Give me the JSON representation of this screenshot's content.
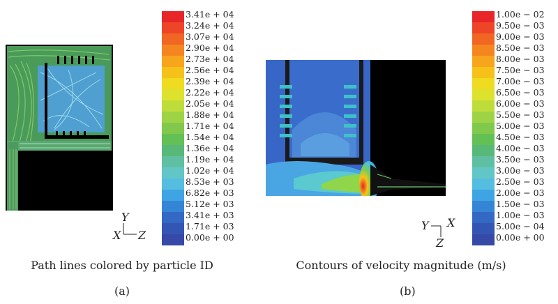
{
  "panel_a": {
    "caption": "Path lines colored by particle ID",
    "sublabel": "(a)",
    "axes": {
      "up": "Y",
      "left": "X",
      "right": "Z"
    },
    "colorbar_labels": [
      "3.41e + 04",
      "3.24e + 04",
      "3.07e + 04",
      "2.90e + 04",
      "2.73e + 04",
      "2.56e + 04",
      "2.39e + 04",
      "2.22e + 04",
      "2.05e + 04",
      "1.88e + 04",
      "1.71e + 04",
      "1.54e + 04",
      "1.36e + 04",
      "1.19e + 04",
      "1.02e + 04",
      "8.53e + 03",
      "6.82e + 03",
      "5.12e + 03",
      "3.41e + 03",
      "1.71e + 03",
      "0.00e + 00"
    ]
  },
  "panel_b": {
    "caption": "Contours of velocity magnitude (m/s)",
    "sublabel": "(b)",
    "axes": {
      "left": "Y",
      "right": "X",
      "down": "Z"
    },
    "colorbar_labels": [
      "1.00e − 02",
      "9.50e − 03",
      "9.00e − 03",
      "8.50e − 03",
      "8.00e − 03",
      "7.50e − 03",
      "7.00e − 03",
      "6.50e − 03",
      "6.00e − 03",
      "5.50e − 03",
      "5.00e − 03",
      "4.50e − 03",
      "4.00e − 03",
      "3.50e − 03",
      "3.00e − 03",
      "2.50e − 03",
      "2.00e − 03",
      "1.50e − 03",
      "1.00e − 03",
      "5.00e − 04",
      "0.00e + 00"
    ]
  },
  "colormap": [
    "#e8262a",
    "#ee4427",
    "#f26624",
    "#f5861f",
    "#f7a51c",
    "#f6c219",
    "#efdb1f",
    "#dce22d",
    "#bfdd3a",
    "#9fd346",
    "#80c94c",
    "#63c055",
    "#58b878",
    "#5fbfa2",
    "#62c5c6",
    "#55bde0",
    "#3fa4e3",
    "#3585d6",
    "#3368c4",
    "#3356b4",
    "#3649a6"
  ]
}
